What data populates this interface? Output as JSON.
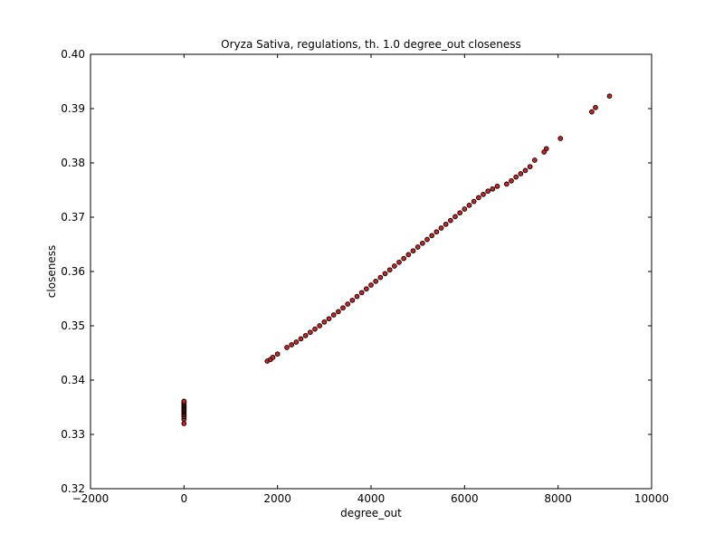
{
  "chart_data": {
    "type": "scatter",
    "title": "Oryza Sativa, regulations, th. 1.0 degree_out closeness",
    "xlabel": "degree_out",
    "ylabel": "closeness",
    "xlim": [
      -2000,
      10000
    ],
    "ylim": [
      0.32,
      0.4
    ],
    "xticks": [
      -2000,
      0,
      2000,
      4000,
      6000,
      8000,
      10000
    ],
    "xtick_labels": [
      "−2000",
      "0",
      "2000",
      "4000",
      "6000",
      "8000",
      "10000"
    ],
    "yticks": [
      0.32,
      0.33,
      0.34,
      0.35,
      0.36,
      0.37,
      0.38,
      0.39,
      0.4
    ],
    "ytick_labels": [
      "0.32",
      "0.33",
      "0.34",
      "0.35",
      "0.36",
      "0.37",
      "0.38",
      "0.39",
      "0.40"
    ],
    "grid": false,
    "legend": "none",
    "marker_color": "#cc2222",
    "marker_edge_color": "#000000",
    "series": [
      {
        "points": [
          [
            0,
            0.332
          ],
          [
            0,
            0.3328
          ],
          [
            0,
            0.3333
          ],
          [
            0,
            0.3336
          ],
          [
            0,
            0.3339
          ],
          [
            0,
            0.3341
          ],
          [
            0,
            0.3343
          ],
          [
            0,
            0.3345
          ],
          [
            0,
            0.3347
          ],
          [
            0,
            0.3349
          ],
          [
            0,
            0.3351
          ],
          [
            0,
            0.3353
          ],
          [
            0,
            0.3355
          ],
          [
            0,
            0.3357
          ],
          [
            0,
            0.3359
          ],
          [
            0,
            0.3361
          ],
          [
            1780,
            0.3435
          ],
          [
            1850,
            0.3438
          ],
          [
            1900,
            0.3442
          ],
          [
            2000,
            0.3448
          ],
          [
            2200,
            0.346
          ],
          [
            2300,
            0.3465
          ],
          [
            2400,
            0.347
          ],
          [
            2500,
            0.3476
          ],
          [
            2600,
            0.3482
          ],
          [
            2700,
            0.3488
          ],
          [
            2800,
            0.3494
          ],
          [
            2900,
            0.35
          ],
          [
            3000,
            0.3507
          ],
          [
            3100,
            0.3513
          ],
          [
            3200,
            0.352
          ],
          [
            3300,
            0.3526
          ],
          [
            3400,
            0.3533
          ],
          [
            3500,
            0.354
          ],
          [
            3600,
            0.3547
          ],
          [
            3700,
            0.3554
          ],
          [
            3800,
            0.3561
          ],
          [
            3900,
            0.3568
          ],
          [
            4000,
            0.3575
          ],
          [
            4100,
            0.3582
          ],
          [
            4200,
            0.3589
          ],
          [
            4300,
            0.3596
          ],
          [
            4400,
            0.3603
          ],
          [
            4500,
            0.361
          ],
          [
            4600,
            0.3617
          ],
          [
            4700,
            0.3624
          ],
          [
            4800,
            0.3631
          ],
          [
            4900,
            0.3638
          ],
          [
            5000,
            0.3645
          ],
          [
            5100,
            0.3652
          ],
          [
            5200,
            0.3659
          ],
          [
            5300,
            0.3666
          ],
          [
            5400,
            0.3673
          ],
          [
            5500,
            0.368
          ],
          [
            5600,
            0.3687
          ],
          [
            5700,
            0.3694
          ],
          [
            5800,
            0.3701
          ],
          [
            5900,
            0.3708
          ],
          [
            6000,
            0.3715
          ],
          [
            6100,
            0.3722
          ],
          [
            6200,
            0.3729
          ],
          [
            6300,
            0.3736
          ],
          [
            6400,
            0.3742
          ],
          [
            6500,
            0.3748
          ],
          [
            6600,
            0.3752
          ],
          [
            6700,
            0.3757
          ],
          [
            6900,
            0.3761
          ],
          [
            7000,
            0.3767
          ],
          [
            7100,
            0.3774
          ],
          [
            7200,
            0.378
          ],
          [
            7300,
            0.3786
          ],
          [
            7400,
            0.3793
          ],
          [
            7500,
            0.3805
          ],
          [
            7700,
            0.382
          ],
          [
            7750,
            0.3826
          ],
          [
            8050,
            0.3845
          ],
          [
            8720,
            0.3894
          ],
          [
            8800,
            0.3902
          ],
          [
            9100,
            0.3923
          ]
        ]
      }
    ]
  }
}
